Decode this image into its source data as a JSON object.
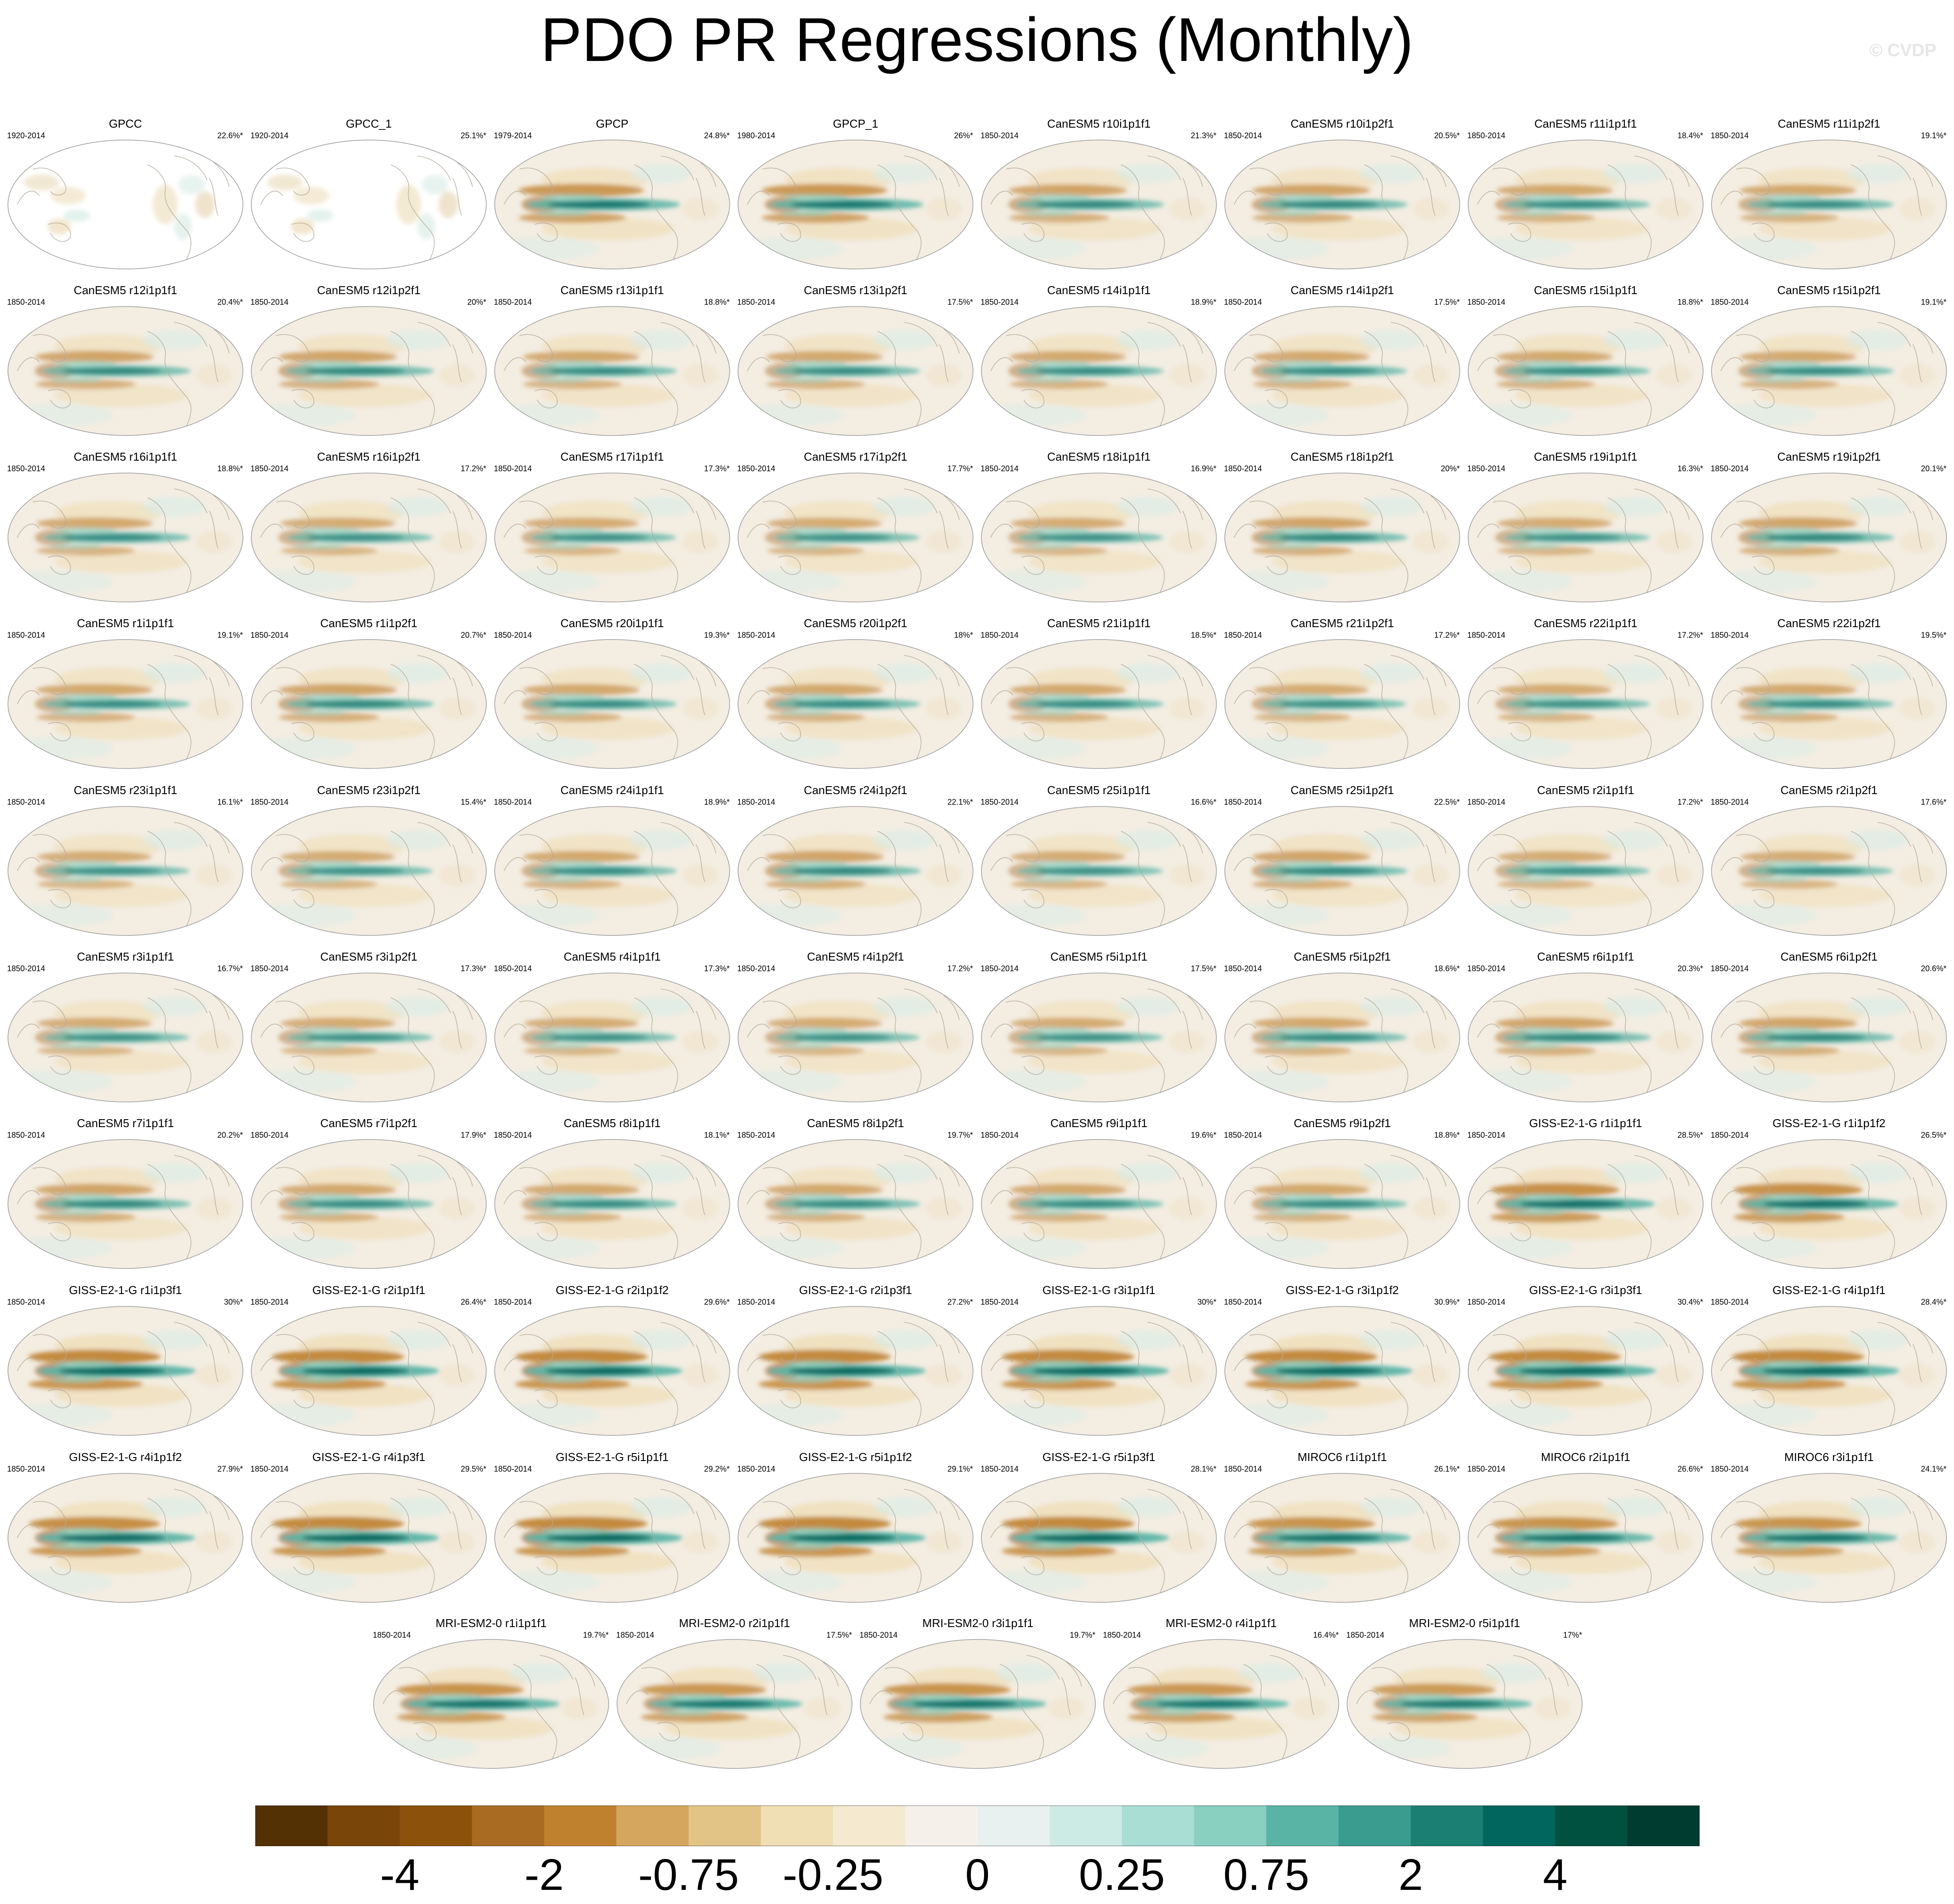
{
  "title": "PDO PR Regressions (Monthly)",
  "watermark": "© CVDP",
  "colors": {
    "strong_negative": "#543005",
    "neutral": "#f5f1ea",
    "strong_positive": "#003c30",
    "coastline": "#b4ab9a"
  },
  "panels": [
    {
      "name": "GPCC",
      "years": "1920-2014",
      "pct": "22.6%*",
      "amp": 0.0,
      "land": 1
    },
    {
      "name": "GPCC_1",
      "years": "1920-2014",
      "pct": "25.1%*",
      "amp": 0.0,
      "land": 1
    },
    {
      "name": "GPCP",
      "years": "1979-2014",
      "pct": "24.8%*",
      "amp": 0.8
    },
    {
      "name": "GPCP_1",
      "years": "1980-2014",
      "pct": "26%*",
      "amp": 0.8
    },
    {
      "name": "CanESM5 r10i1p1f1",
      "years": "1850-2014",
      "pct": "21.3%*",
      "amp": 0.6
    },
    {
      "name": "CanESM5 r10i1p2f1",
      "years": "1850-2014",
      "pct": "20.5%*",
      "amp": 0.6
    },
    {
      "name": "CanESM5 r11i1p1f1",
      "years": "1850-2014",
      "pct": "18.4%*",
      "amp": 0.55
    },
    {
      "name": "CanESM5 r11i1p2f1",
      "years": "1850-2014",
      "pct": "19.1%*",
      "amp": 0.55
    },
    {
      "name": "CanESM5 r12i1p1f1",
      "years": "1850-2014",
      "pct": "20.4%*",
      "amp": 0.6
    },
    {
      "name": "CanESM5 r12i1p2f1",
      "years": "1850-2014",
      "pct": "20%*",
      "amp": 0.6
    },
    {
      "name": "CanESM5 r13i1p1f1",
      "years": "1850-2014",
      "pct": "18.8%*",
      "amp": 0.55
    },
    {
      "name": "CanESM5 r13i1p2f1",
      "years": "1850-2014",
      "pct": "17.5%*",
      "amp": 0.55
    },
    {
      "name": "CanESM5 r14i1p1f1",
      "years": "1850-2014",
      "pct": "18.9%*",
      "amp": 0.55
    },
    {
      "name": "CanESM5 r14i1p2f1",
      "years": "1850-2014",
      "pct": "17.5%*",
      "amp": 0.55
    },
    {
      "name": "CanESM5 r15i1p1f1",
      "years": "1850-2014",
      "pct": "18.8%*",
      "amp": 0.55
    },
    {
      "name": "CanESM5 r15i1p2f1",
      "years": "1850-2014",
      "pct": "19.1%*",
      "amp": 0.55
    },
    {
      "name": "CanESM5 r16i1p1f1",
      "years": "1850-2014",
      "pct": "18.8%*",
      "amp": 0.55
    },
    {
      "name": "CanESM5 r16i1p2f1",
      "years": "1850-2014",
      "pct": "17.2%*",
      "amp": 0.5
    },
    {
      "name": "CanESM5 r17i1p1f1",
      "years": "1850-2014",
      "pct": "17.3%*",
      "amp": 0.5
    },
    {
      "name": "CanESM5 r17i1p2f1",
      "years": "1850-2014",
      "pct": "17.7%*",
      "amp": 0.5
    },
    {
      "name": "CanESM5 r18i1p1f1",
      "years": "1850-2014",
      "pct": "16.9%*",
      "amp": 0.5
    },
    {
      "name": "CanESM5 r18i1p2f1",
      "years": "1850-2014",
      "pct": "20%*",
      "amp": 0.6
    },
    {
      "name": "CanESM5 r19i1p1f1",
      "years": "1850-2014",
      "pct": "16.3%*",
      "amp": 0.5
    },
    {
      "name": "CanESM5 r19i1p2f1",
      "years": "1850-2014",
      "pct": "20.1%*",
      "amp": 0.6
    },
    {
      "name": "CanESM5 r1i1p1f1",
      "years": "1850-2014",
      "pct": "19.1%*",
      "amp": 0.55
    },
    {
      "name": "CanESM5 r1i1p2f1",
      "years": "1850-2014",
      "pct": "20.7%*",
      "amp": 0.6
    },
    {
      "name": "CanESM5 r20i1p1f1",
      "years": "1850-2014",
      "pct": "19.3%*",
      "amp": 0.55
    },
    {
      "name": "CanESM5 r20i1p2f1",
      "years": "1850-2014",
      "pct": "18%*",
      "amp": 0.55
    },
    {
      "name": "CanESM5 r21i1p1f1",
      "years": "1850-2014",
      "pct": "18.5%*",
      "amp": 0.55
    },
    {
      "name": "CanESM5 r21i1p2f1",
      "years": "1850-2014",
      "pct": "17.2%*",
      "amp": 0.5
    },
    {
      "name": "CanESM5 r22i1p1f1",
      "years": "1850-2014",
      "pct": "17.2%*",
      "amp": 0.5
    },
    {
      "name": "CanESM5 r22i1p2f1",
      "years": "1850-2014",
      "pct": "19.5%*",
      "amp": 0.55
    },
    {
      "name": "CanESM5 r23i1p1f1",
      "years": "1850-2014",
      "pct": "16.1%*",
      "amp": 0.5
    },
    {
      "name": "CanESM5 r23i1p2f1",
      "years": "1850-2014",
      "pct": "15.4%*",
      "amp": 0.5
    },
    {
      "name": "CanESM5 r24i1p1f1",
      "years": "1850-2014",
      "pct": "18.9%*",
      "amp": 0.55
    },
    {
      "name": "CanESM5 r24i1p2f1",
      "years": "1850-2014",
      "pct": "22.1%*",
      "amp": 0.6
    },
    {
      "name": "CanESM5 r25i1p1f1",
      "years": "1850-2014",
      "pct": "16.6%*",
      "amp": 0.5
    },
    {
      "name": "CanESM5 r25i1p2f1",
      "years": "1850-2014",
      "pct": "22.5%*",
      "amp": 0.6
    },
    {
      "name": "CanESM5 r2i1p1f1",
      "years": "1850-2014",
      "pct": "17.2%*",
      "amp": 0.5
    },
    {
      "name": "CanESM5 r2i1p2f1",
      "years": "1850-2014",
      "pct": "17.6%*",
      "amp": 0.5
    },
    {
      "name": "CanESM5 r3i1p1f1",
      "years": "1850-2014",
      "pct": "16.7%*",
      "amp": 0.5
    },
    {
      "name": "CanESM5 r3i1p2f1",
      "years": "1850-2014",
      "pct": "17.3%*",
      "amp": 0.5
    },
    {
      "name": "CanESM5 r4i1p1f1",
      "years": "1850-2014",
      "pct": "17.3%*",
      "amp": 0.5
    },
    {
      "name": "CanESM5 r4i1p2f1",
      "years": "1850-2014",
      "pct": "17.2%*",
      "amp": 0.5
    },
    {
      "name": "CanESM5 r5i1p1f1",
      "years": "1850-2014",
      "pct": "17.5%*",
      "amp": 0.5
    },
    {
      "name": "CanESM5 r5i1p2f1",
      "years": "1850-2014",
      "pct": "18.6%*",
      "amp": 0.55
    },
    {
      "name": "CanESM5 r6i1p1f1",
      "years": "1850-2014",
      "pct": "20.3%*",
      "amp": 0.6
    },
    {
      "name": "CanESM5 r6i1p2f1",
      "years": "1850-2014",
      "pct": "20.6%*",
      "amp": 0.6
    },
    {
      "name": "CanESM5 r7i1p1f1",
      "years": "1850-2014",
      "pct": "20.2%*",
      "amp": 0.6
    },
    {
      "name": "CanESM5 r7i1p2f1",
      "years": "1850-2014",
      "pct": "17.9%*",
      "amp": 0.55
    },
    {
      "name": "CanESM5 r8i1p1f1",
      "years": "1850-2014",
      "pct": "18.1%*",
      "amp": 0.55
    },
    {
      "name": "CanESM5 r8i1p2f1",
      "years": "1850-2014",
      "pct": "19.7%*",
      "amp": 0.55
    },
    {
      "name": "CanESM5 r9i1p1f1",
      "years": "1850-2014",
      "pct": "19.6%*",
      "amp": 0.55
    },
    {
      "name": "CanESM5 r9i1p2f1",
      "years": "1850-2014",
      "pct": "18.8%*",
      "amp": 0.55
    },
    {
      "name": "GISS-E2-1-G r1i1p1f1",
      "years": "1850-2014",
      "pct": "28.5%*",
      "amp": 0.9
    },
    {
      "name": "GISS-E2-1-G r1i1p1f2",
      "years": "1850-2014",
      "pct": "26.5%*",
      "amp": 0.9
    },
    {
      "name": "GISS-E2-1-G r1i1p3f1",
      "years": "1850-2014",
      "pct": "30%*",
      "amp": 1.0
    },
    {
      "name": "GISS-E2-1-G r2i1p1f1",
      "years": "1850-2014",
      "pct": "26.4%*",
      "amp": 1.0
    },
    {
      "name": "GISS-E2-1-G r2i1p1f2",
      "years": "1850-2014",
      "pct": "29.6%*",
      "amp": 1.0
    },
    {
      "name": "GISS-E2-1-G r2i1p3f1",
      "years": "1850-2014",
      "pct": "27.2%*",
      "amp": 1.0
    },
    {
      "name": "GISS-E2-1-G r3i1p1f1",
      "years": "1850-2014",
      "pct": "30%*",
      "amp": 1.0
    },
    {
      "name": "GISS-E2-1-G r3i1p1f2",
      "years": "1850-2014",
      "pct": "30.9%*",
      "amp": 1.0
    },
    {
      "name": "GISS-E2-1-G r3i1p3f1",
      "years": "1850-2014",
      "pct": "30.4%*",
      "amp": 1.0
    },
    {
      "name": "GISS-E2-1-G r4i1p1f1",
      "years": "1850-2014",
      "pct": "28.4%*",
      "amp": 1.0
    },
    {
      "name": "GISS-E2-1-G r4i1p1f2",
      "years": "1850-2014",
      "pct": "27.9%*",
      "amp": 0.95
    },
    {
      "name": "GISS-E2-1-G r4i1p3f1",
      "years": "1850-2014",
      "pct": "29.5%*",
      "amp": 1.0
    },
    {
      "name": "GISS-E2-1-G r5i1p1f1",
      "years": "1850-2014",
      "pct": "29.2%*",
      "amp": 1.0
    },
    {
      "name": "GISS-E2-1-G r5i1p1f2",
      "years": "1850-2014",
      "pct": "29.1%*",
      "amp": 1.0
    },
    {
      "name": "GISS-E2-1-G r5i1p3f1",
      "years": "1850-2014",
      "pct": "28.1%*",
      "amp": 1.0
    },
    {
      "name": "MIROC6 r1i1p1f1",
      "years": "1850-2014",
      "pct": "26.1%*",
      "amp": 0.85
    },
    {
      "name": "MIROC6 r2i1p1f1",
      "years": "1850-2014",
      "pct": "26.6%*",
      "amp": 0.85
    },
    {
      "name": "MIROC6 r3i1p1f1",
      "years": "1850-2014",
      "pct": "24.1%*",
      "amp": 0.85
    },
    {
      "name": "MRI-ESM2-0 r1i1p1f1",
      "years": "1850-2014",
      "pct": "19.7%*",
      "amp": 0.85
    },
    {
      "name": "MRI-ESM2-0 r2i1p1f1",
      "years": "1850-2014",
      "pct": "17.5%*",
      "amp": 0.8
    },
    {
      "name": "MRI-ESM2-0 r3i1p1f1",
      "years": "1850-2014",
      "pct": "19.7%*",
      "amp": 0.85
    },
    {
      "name": "MRI-ESM2-0 r4i1p1f1",
      "years": "1850-2014",
      "pct": "16.4%*",
      "amp": 0.8
    },
    {
      "name": "MRI-ESM2-0 r5i1p1f1",
      "years": "1850-2014",
      "pct": "17%*",
      "amp": 0.75
    }
  ],
  "colorbar": {
    "colors": [
      "#543005",
      "#7a4509",
      "#8c510a",
      "#a96b22",
      "#bf812d",
      "#d5a75e",
      "#e3c487",
      "#f0deb4",
      "#f5ead0",
      "#f5f1ea",
      "#e8f1ef",
      "#cdebe5",
      "#a8ded4",
      "#89d0c1",
      "#5ab4a6",
      "#3a9b8f",
      "#1b7f74",
      "#01665e",
      "#00513f",
      "#003c30"
    ],
    "labels": [
      "-4",
      "-2",
      "-0.75",
      "-0.25",
      "0",
      "0.25",
      "0.75",
      "2",
      "4"
    ]
  }
}
